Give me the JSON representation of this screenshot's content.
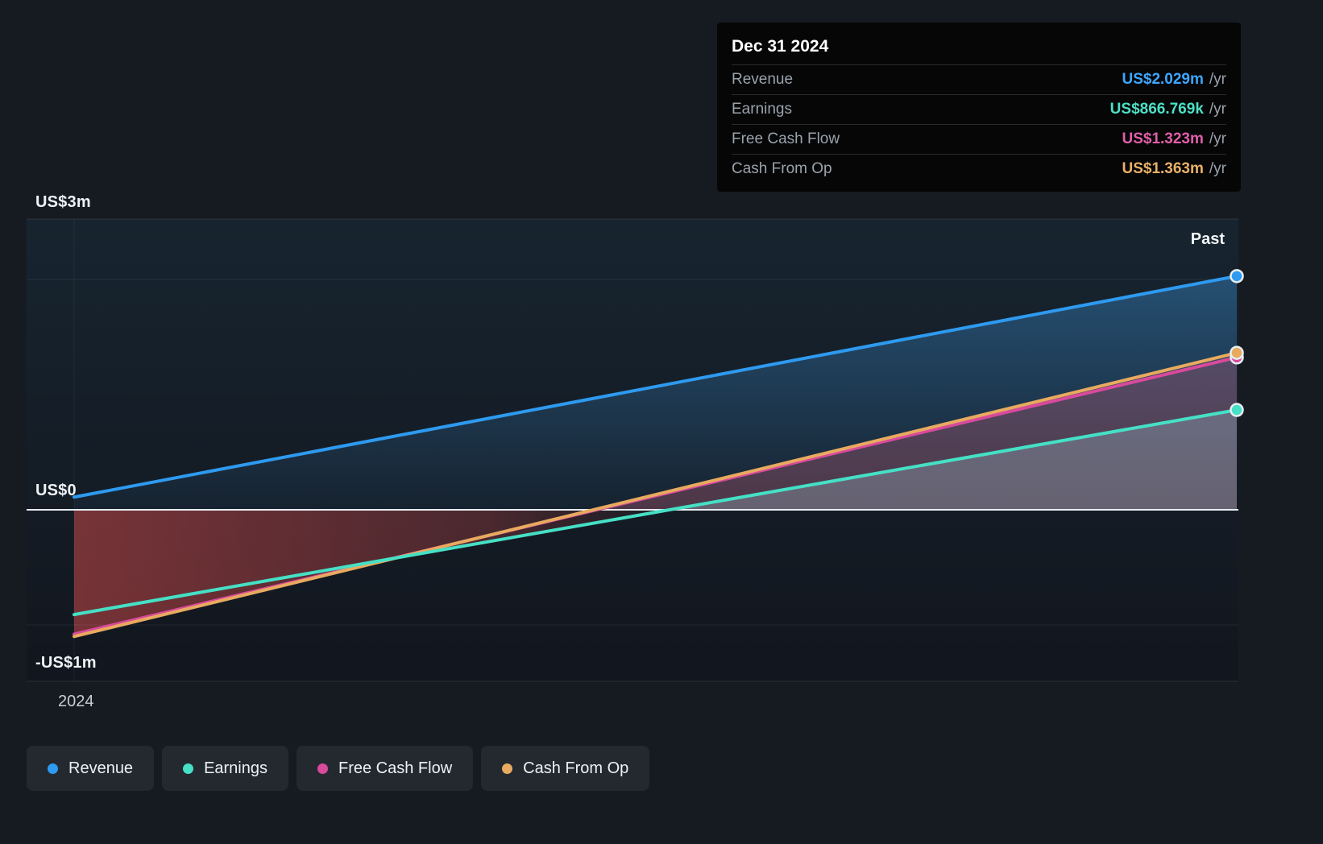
{
  "page": {
    "background": "#161b22"
  },
  "tooltip": {
    "date": "Dec 31 2024",
    "rows": [
      {
        "label": "Revenue",
        "value": "US$2.029m",
        "suffix": "/yr",
        "color": "#3ea6ff"
      },
      {
        "label": "Earnings",
        "value": "US$866.769k",
        "suffix": "/yr",
        "color": "#4ce0c6"
      },
      {
        "label": "Free Cash Flow",
        "value": "US$1.323m",
        "suffix": "/yr",
        "color": "#e15fa9"
      },
      {
        "label": "Cash From Op",
        "value": "US$1.363m",
        "suffix": "/yr",
        "color": "#eab168"
      }
    ]
  },
  "axis": {
    "y_labels": [
      "US$3m",
      "US$0",
      "-US$1m"
    ],
    "x_tick": "2024",
    "past": "Past"
  },
  "legend": [
    {
      "label": "Revenue",
      "color": "#2e9af0"
    },
    {
      "label": "Earnings",
      "color": "#45e0c6"
    },
    {
      "label": "Free Cash Flow",
      "color": "#d84a9c"
    },
    {
      "label": "Cash From Op",
      "color": "#e8aa5f"
    }
  ],
  "chart_data": {
    "type": "area",
    "title": "",
    "x_ticks": [
      "2024"
    ],
    "end_date": "Dec 31 2024",
    "y_ticks": [
      {
        "label": "US$3m",
        "value_usd_m": 3
      },
      {
        "label": "US$0",
        "value_usd_m": 0
      },
      {
        "label": "-US$1m",
        "value_usd_m": -1
      }
    ],
    "ylim_usd_m": [
      -1.5,
      3
    ],
    "series": [
      {
        "name": "Revenue",
        "color": "#2e9af0",
        "start_usd_m": 0.11,
        "end_usd_m": 2.029
      },
      {
        "name": "Earnings",
        "color": "#45e0c6",
        "start_usd_m": -0.91,
        "end_usd_m": 0.866769
      },
      {
        "name": "Free Cash Flow",
        "color": "#d84a9c",
        "start_usd_m": -1.08,
        "end_usd_m": 1.323
      },
      {
        "name": "Cash From Op",
        "color": "#e8aa5f",
        "start_usd_m": -1.1,
        "end_usd_m": 1.363
      }
    ],
    "legend_position": "bottom",
    "grid": true
  }
}
